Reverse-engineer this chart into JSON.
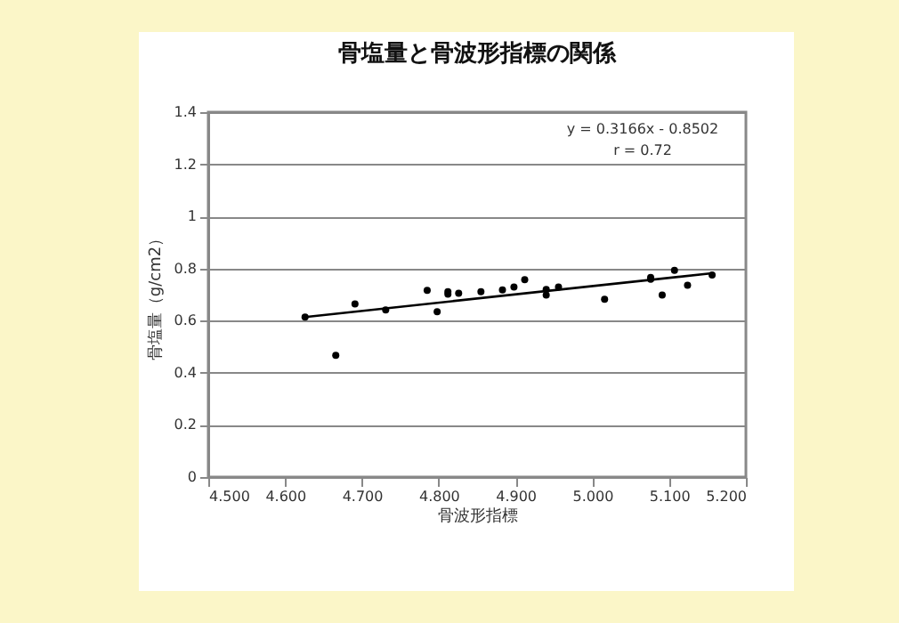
{
  "chart_data": {
    "type": "scatter",
    "title": "骨塩量と骨波形指標の関係",
    "xlabel": "骨波形指標",
    "ylabel": "骨塩量（g/cm2）",
    "annotations": [
      "y = 0.3166x - 0.8502",
      "r = 0.72"
    ],
    "series": [
      {
        "color": "#000000",
        "marker": "circle",
        "x": [
          4.626,
          4.666,
          4.691,
          4.731,
          4.785,
          4.798,
          4.812,
          4.812,
          4.826,
          4.855,
          4.883,
          4.898,
          4.912,
          4.94,
          4.94,
          4.956,
          5.016,
          5.076,
          5.076,
          5.091,
          5.107,
          5.124,
          5.156
        ],
        "values": [
          0.614,
          0.467,
          0.664,
          0.641,
          0.716,
          0.634,
          0.711,
          0.702,
          0.705,
          0.711,
          0.718,
          0.729,
          0.757,
          0.72,
          0.698,
          0.729,
          0.682,
          0.766,
          0.759,
          0.698,
          0.793,
          0.736,
          0.775
        ]
      },
      {
        "type": "line",
        "color": "#000000",
        "x": [
          4.626,
          5.156
        ],
        "values": [
          0.614,
          0.782
        ]
      }
    ],
    "xlim": [
      4.5,
      5.2
    ],
    "xticks": [
      {
        "value": 4.5,
        "label": "4.500"
      },
      {
        "value": 4.6,
        "label": "4.600"
      },
      {
        "value": 4.7,
        "label": "4.700"
      },
      {
        "value": 4.8,
        "label": "4.800"
      },
      {
        "value": 4.9,
        "label": "4.900"
      },
      {
        "value": 5.0,
        "label": "5.000"
      },
      {
        "value": 5.1,
        "label": "5.100"
      },
      {
        "value": 5.2,
        "label": "5.200"
      }
    ],
    "ylim": [
      0,
      1.4
    ],
    "yticks": [
      0,
      0.2,
      0.4,
      0.6,
      0.8,
      1,
      1.2,
      1.4
    ],
    "grid": "y"
  }
}
